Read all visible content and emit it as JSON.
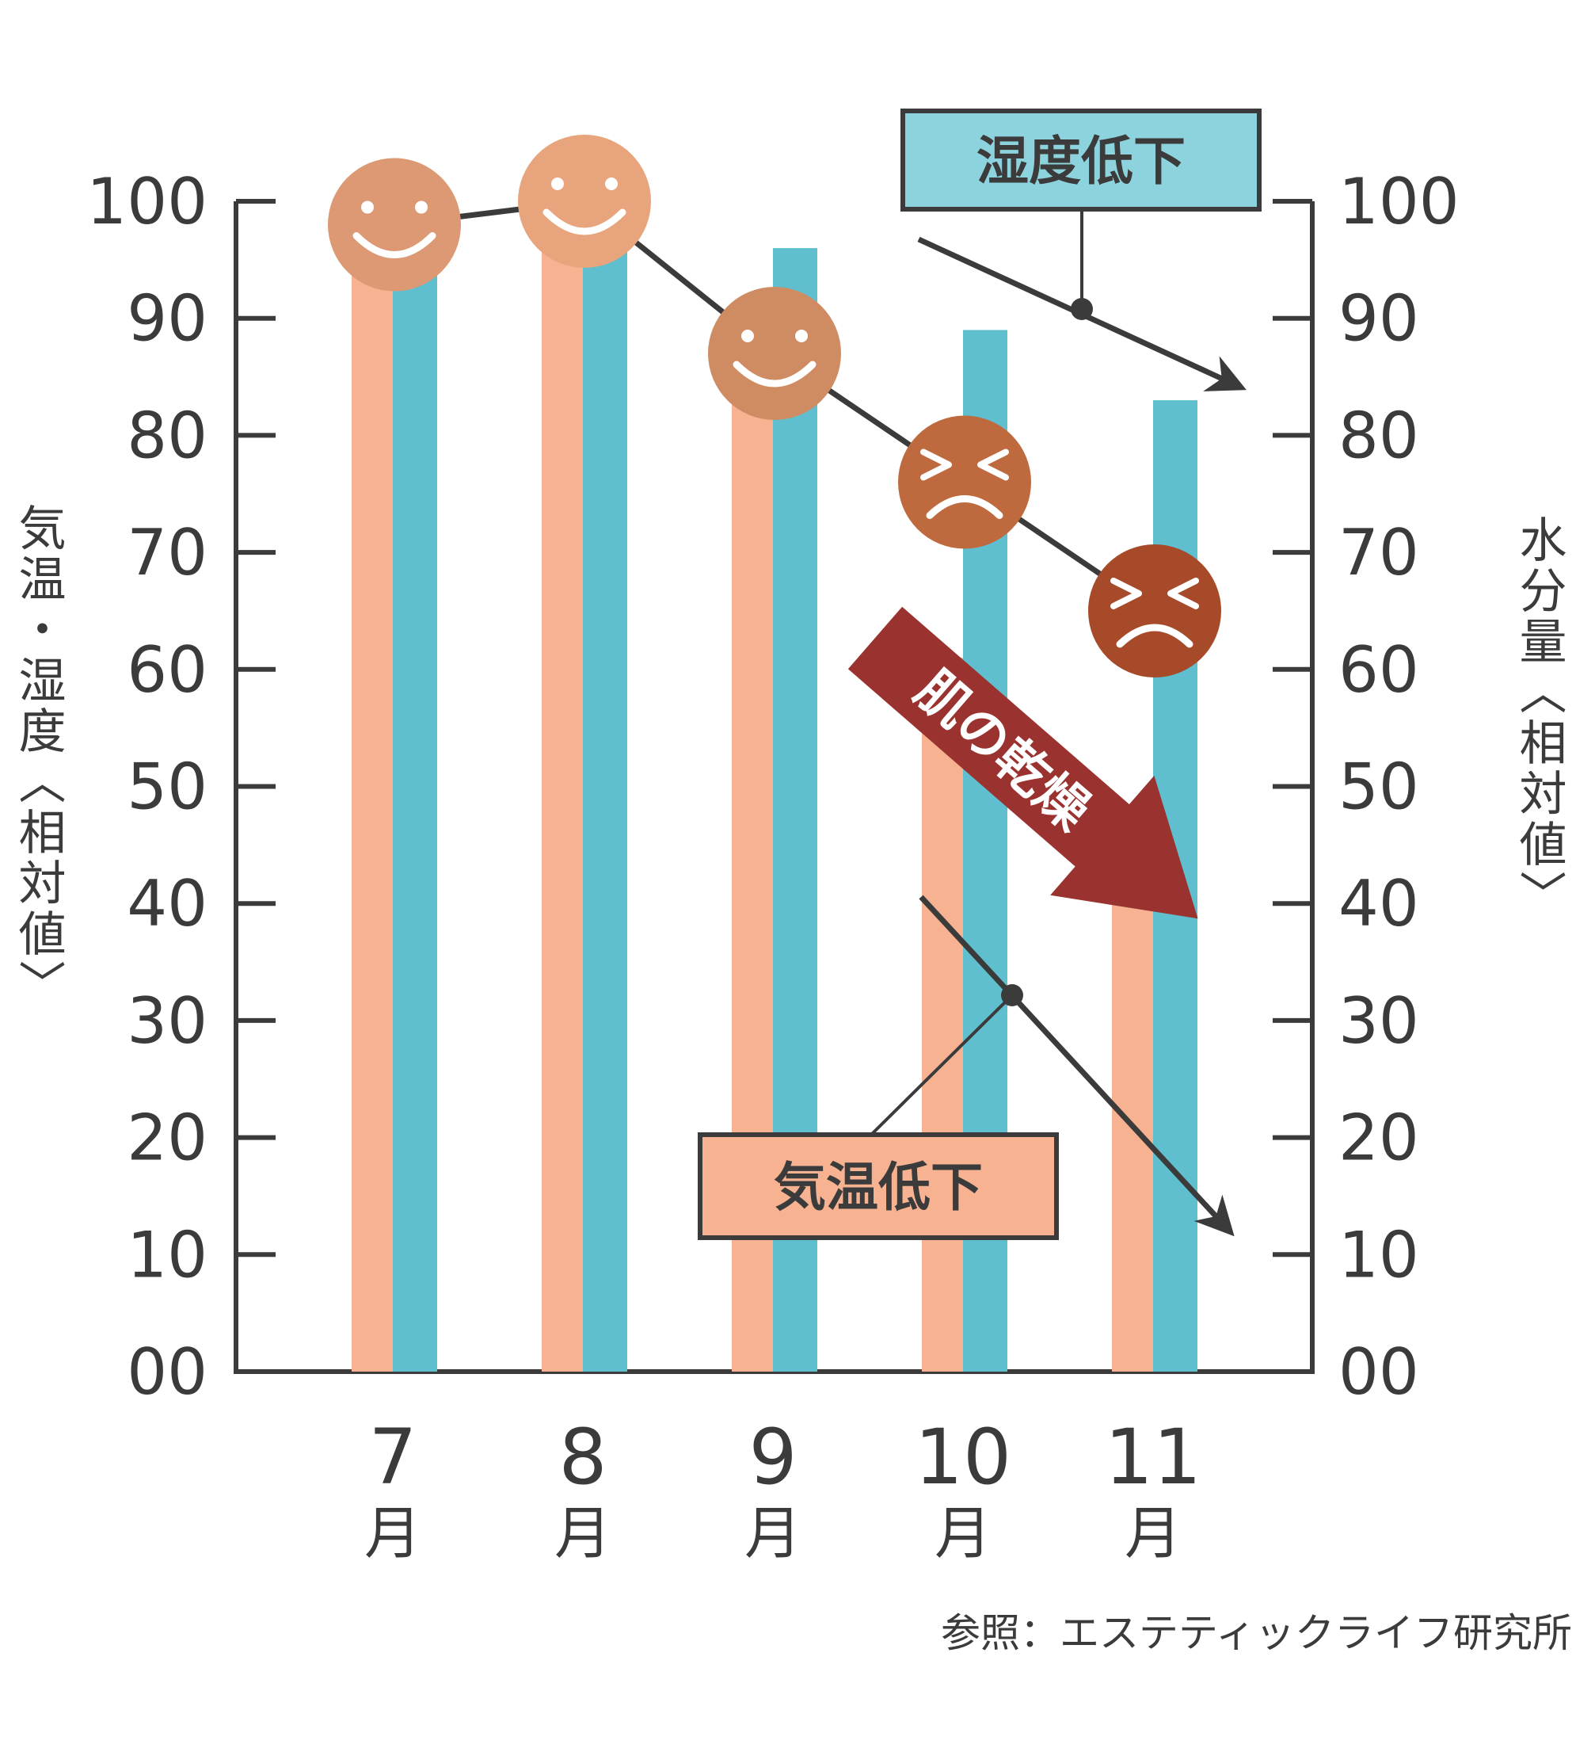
{
  "chart_data": {
    "type": "bar",
    "categories": [
      "7",
      "8",
      "9",
      "10",
      "11"
    ],
    "category_unit": "月",
    "y_left_ticks": [
      "00",
      "10",
      "20",
      "30",
      "40",
      "50",
      "60",
      "70",
      "80",
      "90",
      "100"
    ],
    "y_right_ticks": [
      "00",
      "10",
      "20",
      "30",
      "40",
      "50",
      "60",
      "70",
      "80",
      "90",
      "100"
    ],
    "ylim": [
      0,
      100
    ],
    "ylabel_left": "気温・湿度〈相対値〉",
    "ylabel_right": "水分量〈相対値〉",
    "series": [
      {
        "values": [
          95,
          96,
          84,
          61,
          45
        ],
        "color": "#f7b391"
      },
      {
        "values": [
          95,
          96,
          96,
          89,
          83
        ],
        "color": "#5fbfcf"
      }
    ],
    "moisture_line": {
      "values": [
        98,
        100,
        87,
        76,
        65
      ],
      "faces": [
        "smile",
        "smile",
        "smile",
        "frown",
        "frown"
      ],
      "face_colors": [
        "#dc9973",
        "#e8a47c",
        "#cf8c62",
        "#bf6a3e",
        "#a64a2a"
      ]
    },
    "annotations": {
      "humidity": {
        "label": "湿度低下",
        "box_color": "#8dd3de"
      },
      "temperature": {
        "label": "気温低下",
        "box_color": "#f7b391"
      },
      "skin": {
        "label": "肌の乾燥",
        "arrow_color": "#9a3330"
      }
    },
    "source": "参照：エステティックライフ研究所"
  }
}
